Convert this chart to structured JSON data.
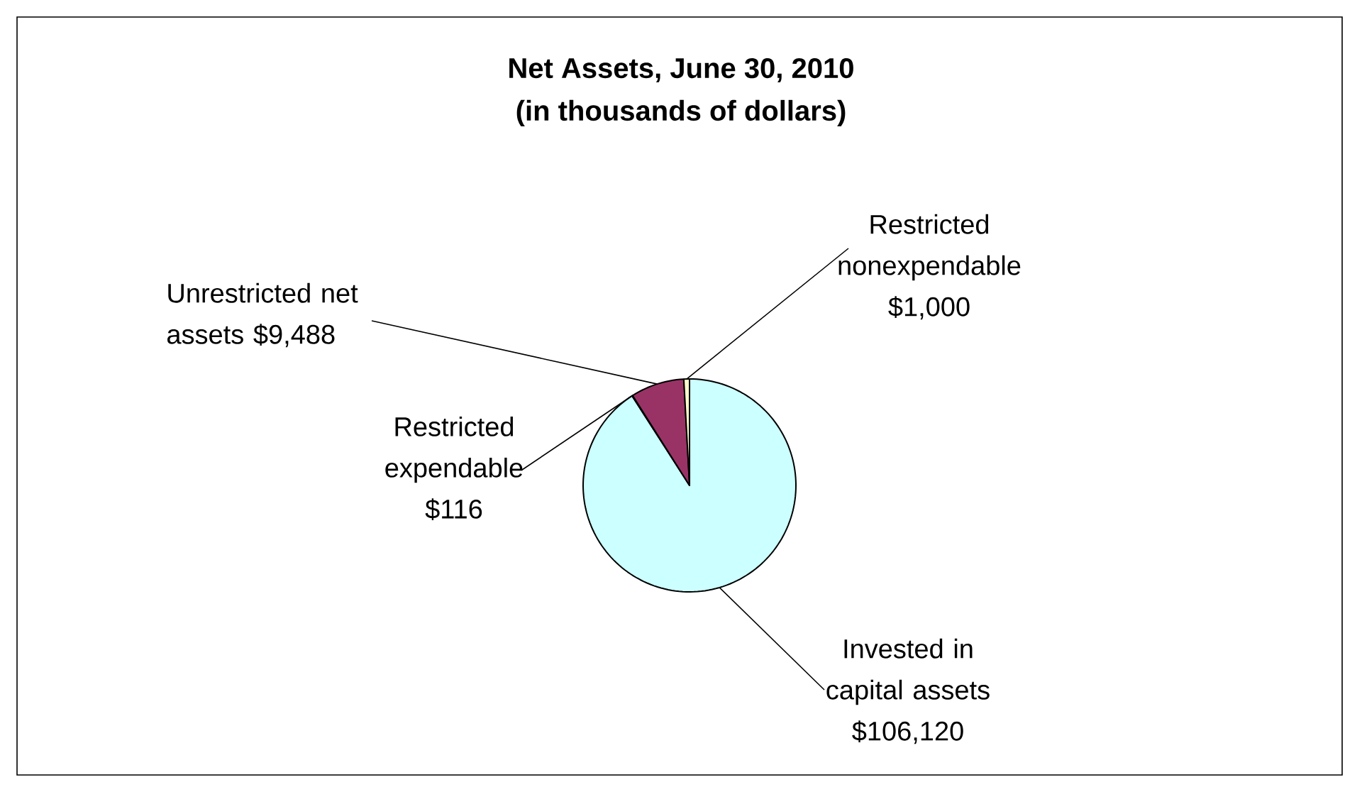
{
  "chart_data": {
    "type": "pie",
    "title": "Net Assets, June 30, 2010",
    "subtitle": "(in thousands of dollars)",
    "categories": [
      "Invested in capital assets",
      "Restricted expendable",
      "Unrestricted net assets",
      "Restricted nonexpendable"
    ],
    "values": [
      106120,
      116,
      9488,
      1000
    ],
    "value_labels": [
      "$106,120",
      "$116",
      "$9,488",
      "$1,000"
    ],
    "colors": [
      "#ccffff",
      "#ffffcc",
      "#993366",
      "#ffffcc"
    ]
  }
}
